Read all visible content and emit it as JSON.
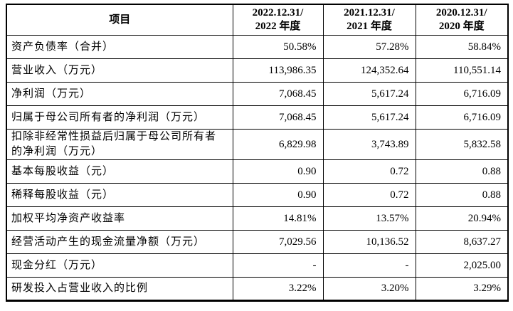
{
  "table": {
    "header": {
      "item_label": "项目",
      "columns": [
        "2022.12.31/\n2022 年度",
        "2021.12.31/\n2021 年度",
        "2020.12.31/\n2020 年度"
      ]
    },
    "rows": [
      {
        "label": "资产负债率（合并）",
        "values": [
          "50.58%",
          "57.28%",
          "58.84%"
        ]
      },
      {
        "label": "营业收入（万元）",
        "values": [
          "113,986.35",
          "124,352.64",
          "110,551.14"
        ]
      },
      {
        "label": "净利润（万元）",
        "values": [
          "7,068.45",
          "5,617.24",
          "6,716.09"
        ]
      },
      {
        "label": "归属于母公司所有者的净利润（万元）",
        "values": [
          "7,068.45",
          "5,617.24",
          "6,716.09"
        ]
      },
      {
        "label": "扣除非经常性损益后归属于母公司所有者的净利润（万元）",
        "values": [
          "6,829.98",
          "3,743.89",
          "5,832.58"
        ]
      },
      {
        "label": "基本每股收益（元）",
        "values": [
          "0.90",
          "0.72",
          "0.88"
        ]
      },
      {
        "label": "稀释每股收益（元）",
        "values": [
          "0.90",
          "0.72",
          "0.88"
        ]
      },
      {
        "label": "加权平均净资产收益率",
        "values": [
          "14.81%",
          "13.57%",
          "20.94%"
        ]
      },
      {
        "label": "经营活动产生的现金流量净额（万元）",
        "values": [
          "7,029.56",
          "10,136.52",
          "8,637.27"
        ]
      },
      {
        "label": "现金分红（万元）",
        "values": [
          "-",
          "-",
          "2,025.00"
        ]
      },
      {
        "label": "研发投入占营业收入的比例",
        "values": [
          "3.22%",
          "3.20%",
          "3.29%"
        ]
      }
    ]
  }
}
